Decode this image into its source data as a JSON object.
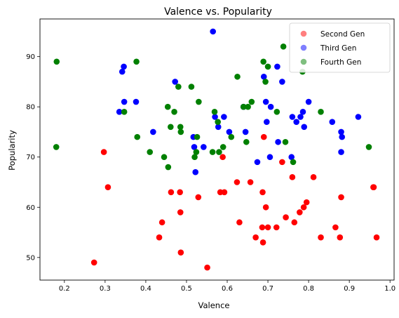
{
  "chart_data": {
    "type": "scatter",
    "title": "Valence vs. Popularity",
    "xlabel": "Valence",
    "ylabel": "Popularity",
    "xlim": [
      0.14,
      1.01
    ],
    "ylim": [
      45.5,
      97.5
    ],
    "xticks": [
      "0.2",
      "0.3",
      "0.4",
      "0.5",
      "0.6",
      "0.7",
      "0.8",
      "0.9",
      "1.0"
    ],
    "yticks": [
      "50",
      "60",
      "70",
      "80",
      "90"
    ],
    "grid": false,
    "legend_position": "top-right",
    "series": [
      {
        "name": "Second Gen",
        "color": "#ff0000",
        "points": [
          [
            0.273,
            49
          ],
          [
            0.297,
            71
          ],
          [
            0.307,
            64
          ],
          [
            0.433,
            54
          ],
          [
            0.44,
            57
          ],
          [
            0.462,
            63
          ],
          [
            0.484,
            63
          ],
          [
            0.485,
            59
          ],
          [
            0.486,
            51
          ],
          [
            0.529,
            62
          ],
          [
            0.551,
            48
          ],
          [
            0.583,
            63
          ],
          [
            0.589,
            70
          ],
          [
            0.593,
            63
          ],
          [
            0.624,
            65
          ],
          [
            0.63,
            57
          ],
          [
            0.657,
            65
          ],
          [
            0.67,
            54
          ],
          [
            0.686,
            56
          ],
          [
            0.687,
            63
          ],
          [
            0.688,
            53
          ],
          [
            0.69,
            74
          ],
          [
            0.695,
            60
          ],
          [
            0.7,
            56
          ],
          [
            0.721,
            56
          ],
          [
            0.735,
            69
          ],
          [
            0.744,
            58
          ],
          [
            0.76,
            66
          ],
          [
            0.765,
            57
          ],
          [
            0.778,
            59
          ],
          [
            0.788,
            60
          ],
          [
            0.795,
            61
          ],
          [
            0.812,
            66
          ],
          [
            0.83,
            54
          ],
          [
            0.866,
            56
          ],
          [
            0.877,
            54
          ],
          [
            0.88,
            62
          ],
          [
            0.959,
            64
          ],
          [
            0.96,
            64
          ],
          [
            0.967,
            54
          ]
        ]
      },
      {
        "name": "Third Gen",
        "color": "#0000ff",
        "points": [
          [
            0.335,
            79
          ],
          [
            0.342,
            87
          ],
          [
            0.346,
            88
          ],
          [
            0.347,
            81
          ],
          [
            0.376,
            81
          ],
          [
            0.418,
            75
          ],
          [
            0.472,
            85
          ],
          [
            0.517,
            74
          ],
          [
            0.519,
            72
          ],
          [
            0.522,
            67
          ],
          [
            0.542,
            72
          ],
          [
            0.565,
            95
          ],
          [
            0.57,
            78
          ],
          [
            0.578,
            76
          ],
          [
            0.592,
            78
          ],
          [
            0.605,
            75
          ],
          [
            0.64,
            80
          ],
          [
            0.645,
            75
          ],
          [
            0.674,
            69
          ],
          [
            0.69,
            86
          ],
          [
            0.695,
            81
          ],
          [
            0.697,
            77
          ],
          [
            0.705,
            70
          ],
          [
            0.707,
            80
          ],
          [
            0.723,
            88
          ],
          [
            0.725,
            73
          ],
          [
            0.735,
            85
          ],
          [
            0.758,
            70
          ],
          [
            0.76,
            78
          ],
          [
            0.77,
            77
          ],
          [
            0.78,
            78
          ],
          [
            0.786,
            79
          ],
          [
            0.789,
            76
          ],
          [
            0.8,
            81
          ],
          [
            0.858,
            77
          ],
          [
            0.88,
            75
          ],
          [
            0.882,
            74
          ],
          [
            0.88,
            71
          ],
          [
            0.922,
            78
          ]
        ]
      },
      {
        "name": "Fourth Gen",
        "color": "#008000",
        "points": [
          [
            0.181,
            89
          ],
          [
            0.18,
            72
          ],
          [
            0.347,
            79
          ],
          [
            0.377,
            89
          ],
          [
            0.379,
            74
          ],
          [
            0.41,
            71
          ],
          [
            0.445,
            70
          ],
          [
            0.454,
            80
          ],
          [
            0.455,
            68
          ],
          [
            0.461,
            76
          ],
          [
            0.47,
            79
          ],
          [
            0.48,
            84
          ],
          [
            0.485,
            76
          ],
          [
            0.486,
            75
          ],
          [
            0.512,
            84
          ],
          [
            0.52,
            70
          ],
          [
            0.524,
            71
          ],
          [
            0.526,
            74
          ],
          [
            0.53,
            81
          ],
          [
            0.564,
            71
          ],
          [
            0.569,
            79
          ],
          [
            0.577,
            77
          ],
          [
            0.58,
            71
          ],
          [
            0.59,
            72
          ],
          [
            0.61,
            74
          ],
          [
            0.625,
            86
          ],
          [
            0.64,
            80
          ],
          [
            0.647,
            73
          ],
          [
            0.651,
            80
          ],
          [
            0.66,
            81
          ],
          [
            0.689,
            89
          ],
          [
            0.694,
            85
          ],
          [
            0.7,
            88
          ],
          [
            0.722,
            79
          ],
          [
            0.738,
            92
          ],
          [
            0.743,
            73
          ],
          [
            0.762,
            69
          ],
          [
            0.785,
            87
          ],
          [
            0.83,
            79
          ],
          [
            0.948,
            72
          ]
        ]
      }
    ]
  }
}
